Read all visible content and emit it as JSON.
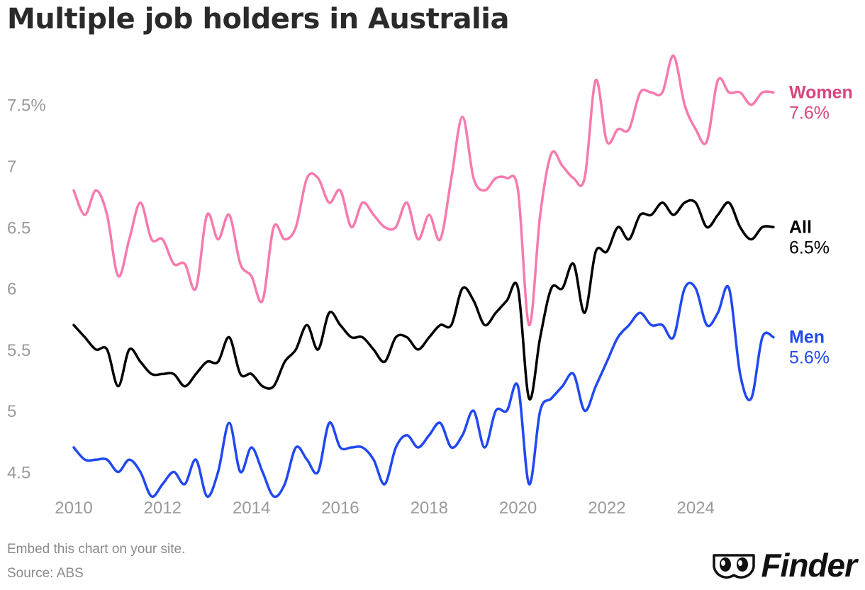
{
  "chart_data": {
    "type": "line",
    "title": "Multiple job holders in Australia",
    "ylim": [
      4.3,
      7.95
    ],
    "yticks": [
      {
        "value": 4.5,
        "label": "4.5"
      },
      {
        "value": 5,
        "label": "5"
      },
      {
        "value": 5.5,
        "label": "5.5"
      },
      {
        "value": 6,
        "label": "6"
      },
      {
        "value": 6.5,
        "label": "6.5"
      },
      {
        "value": 7,
        "label": "7"
      },
      {
        "value": 7.5,
        "label": "7.5%"
      }
    ],
    "xlim": [
      2010,
      2025.8
    ],
    "xticks": [
      "2010",
      "2012",
      "2014",
      "2016",
      "2018",
      "2020",
      "2022",
      "2024"
    ],
    "grid": false,
    "legend": "direct labels at line ends",
    "x": [
      2010.0,
      2010.25,
      2010.5,
      2010.75,
      2011.0,
      2011.25,
      2011.5,
      2011.75,
      2012.0,
      2012.25,
      2012.5,
      2012.75,
      2013.0,
      2013.25,
      2013.5,
      2013.75,
      2014.0,
      2014.25,
      2014.5,
      2014.75,
      2015.0,
      2015.25,
      2015.5,
      2015.75,
      2016.0,
      2016.25,
      2016.5,
      2016.75,
      2017.0,
      2017.25,
      2017.5,
      2017.75,
      2018.0,
      2018.25,
      2018.5,
      2018.75,
      2019.0,
      2019.25,
      2019.5,
      2019.75,
      2020.0,
      2020.25,
      2020.5,
      2020.75,
      2021.0,
      2021.25,
      2021.5,
      2021.75,
      2022.0,
      2022.25,
      2022.5,
      2022.75,
      2023.0,
      2023.25,
      2023.5,
      2023.75,
      2024.0,
      2024.25,
      2024.5,
      2024.75,
      2025.0,
      2025.25,
      2025.5,
      2025.75
    ],
    "series": [
      {
        "name": "Women",
        "value_label": "7.6%",
        "color": "#f77aae",
        "label_color": "#d9457f",
        "values": [
          6.8,
          6.6,
          6.8,
          6.6,
          6.1,
          6.4,
          6.7,
          6.4,
          6.4,
          6.2,
          6.2,
          6.0,
          6.6,
          6.4,
          6.6,
          6.2,
          6.1,
          5.9,
          6.5,
          6.4,
          6.5,
          6.9,
          6.9,
          6.7,
          6.8,
          6.5,
          6.7,
          6.6,
          6.5,
          6.5,
          6.7,
          6.4,
          6.6,
          6.4,
          6.9,
          7.4,
          6.9,
          6.8,
          6.9,
          6.9,
          6.8,
          5.7,
          6.6,
          7.1,
          7.0,
          6.9,
          6.9,
          7.7,
          7.2,
          7.3,
          7.3,
          7.6,
          7.6,
          7.6,
          7.9,
          7.5,
          7.3,
          7.2,
          7.7,
          7.6,
          7.6,
          7.5,
          7.6,
          7.6
        ]
      },
      {
        "name": "All",
        "value_label": "6.5%",
        "color": "#000000",
        "label_color": "#000000",
        "values": [
          5.7,
          5.6,
          5.5,
          5.5,
          5.2,
          5.5,
          5.4,
          5.3,
          5.3,
          5.3,
          5.2,
          5.3,
          5.4,
          5.4,
          5.6,
          5.3,
          5.3,
          5.2,
          5.2,
          5.4,
          5.5,
          5.7,
          5.5,
          5.8,
          5.7,
          5.6,
          5.6,
          5.5,
          5.4,
          5.6,
          5.6,
          5.5,
          5.6,
          5.7,
          5.7,
          6.0,
          5.9,
          5.7,
          5.8,
          5.9,
          6.0,
          5.1,
          5.6,
          6.0,
          6.0,
          6.2,
          5.8,
          6.3,
          6.3,
          6.5,
          6.4,
          6.6,
          6.6,
          6.7,
          6.6,
          6.7,
          6.7,
          6.5,
          6.6,
          6.7,
          6.5,
          6.4,
          6.5,
          6.5
        ]
      },
      {
        "name": "Men",
        "value_label": "5.6%",
        "color": "#2148f2",
        "label_color": "#2148f2",
        "values": [
          4.7,
          4.6,
          4.6,
          4.6,
          4.5,
          4.6,
          4.5,
          4.3,
          4.4,
          4.5,
          4.4,
          4.6,
          4.3,
          4.5,
          4.9,
          4.5,
          4.7,
          4.5,
          4.3,
          4.4,
          4.7,
          4.6,
          4.5,
          4.9,
          4.7,
          4.7,
          4.7,
          4.6,
          4.4,
          4.7,
          4.8,
          4.7,
          4.8,
          4.9,
          4.7,
          4.8,
          5.0,
          4.7,
          5.0,
          5.0,
          5.2,
          4.4,
          5.0,
          5.1,
          5.2,
          5.3,
          5.0,
          5.2,
          5.4,
          5.6,
          5.7,
          5.8,
          5.7,
          5.7,
          5.6,
          6.0,
          6.0,
          5.7,
          5.8,
          6.0,
          5.3,
          5.1,
          5.6,
          5.6
        ]
      }
    ]
  },
  "footer": {
    "embed_text": "Embed this chart on your site.",
    "source_text": "Source: ABS"
  },
  "logo": {
    "text": "Finder",
    "icon": "eyes-icon"
  }
}
